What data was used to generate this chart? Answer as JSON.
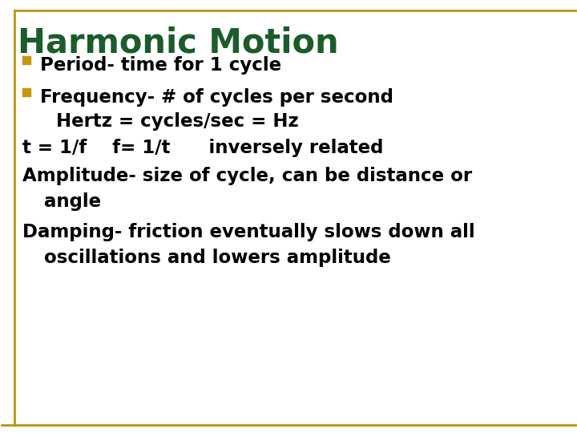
{
  "title": "Harmonic Motion",
  "title_color": "#1a5c2a",
  "title_fontsize": 30,
  "background_color": "#ffffff",
  "border_color": "#b8960c",
  "bullet_color": "#c8960a",
  "bullet1": "Period- time for 1 cycle",
  "bullet2": "Frequency- # of cycles per second",
  "line3": "    Hertz = cycles/sec = Hz",
  "line4": "t = 1/f    f= 1/t      inversely related",
  "line5": "Amplitude- size of cycle, can be distance or",
  "line6": "    angle",
  "line7": "Damping- friction eventually slows down all",
  "line8": "    oscillations and lowers amplitude",
  "text_color": "#000000",
  "text_fontsize": 16.5
}
